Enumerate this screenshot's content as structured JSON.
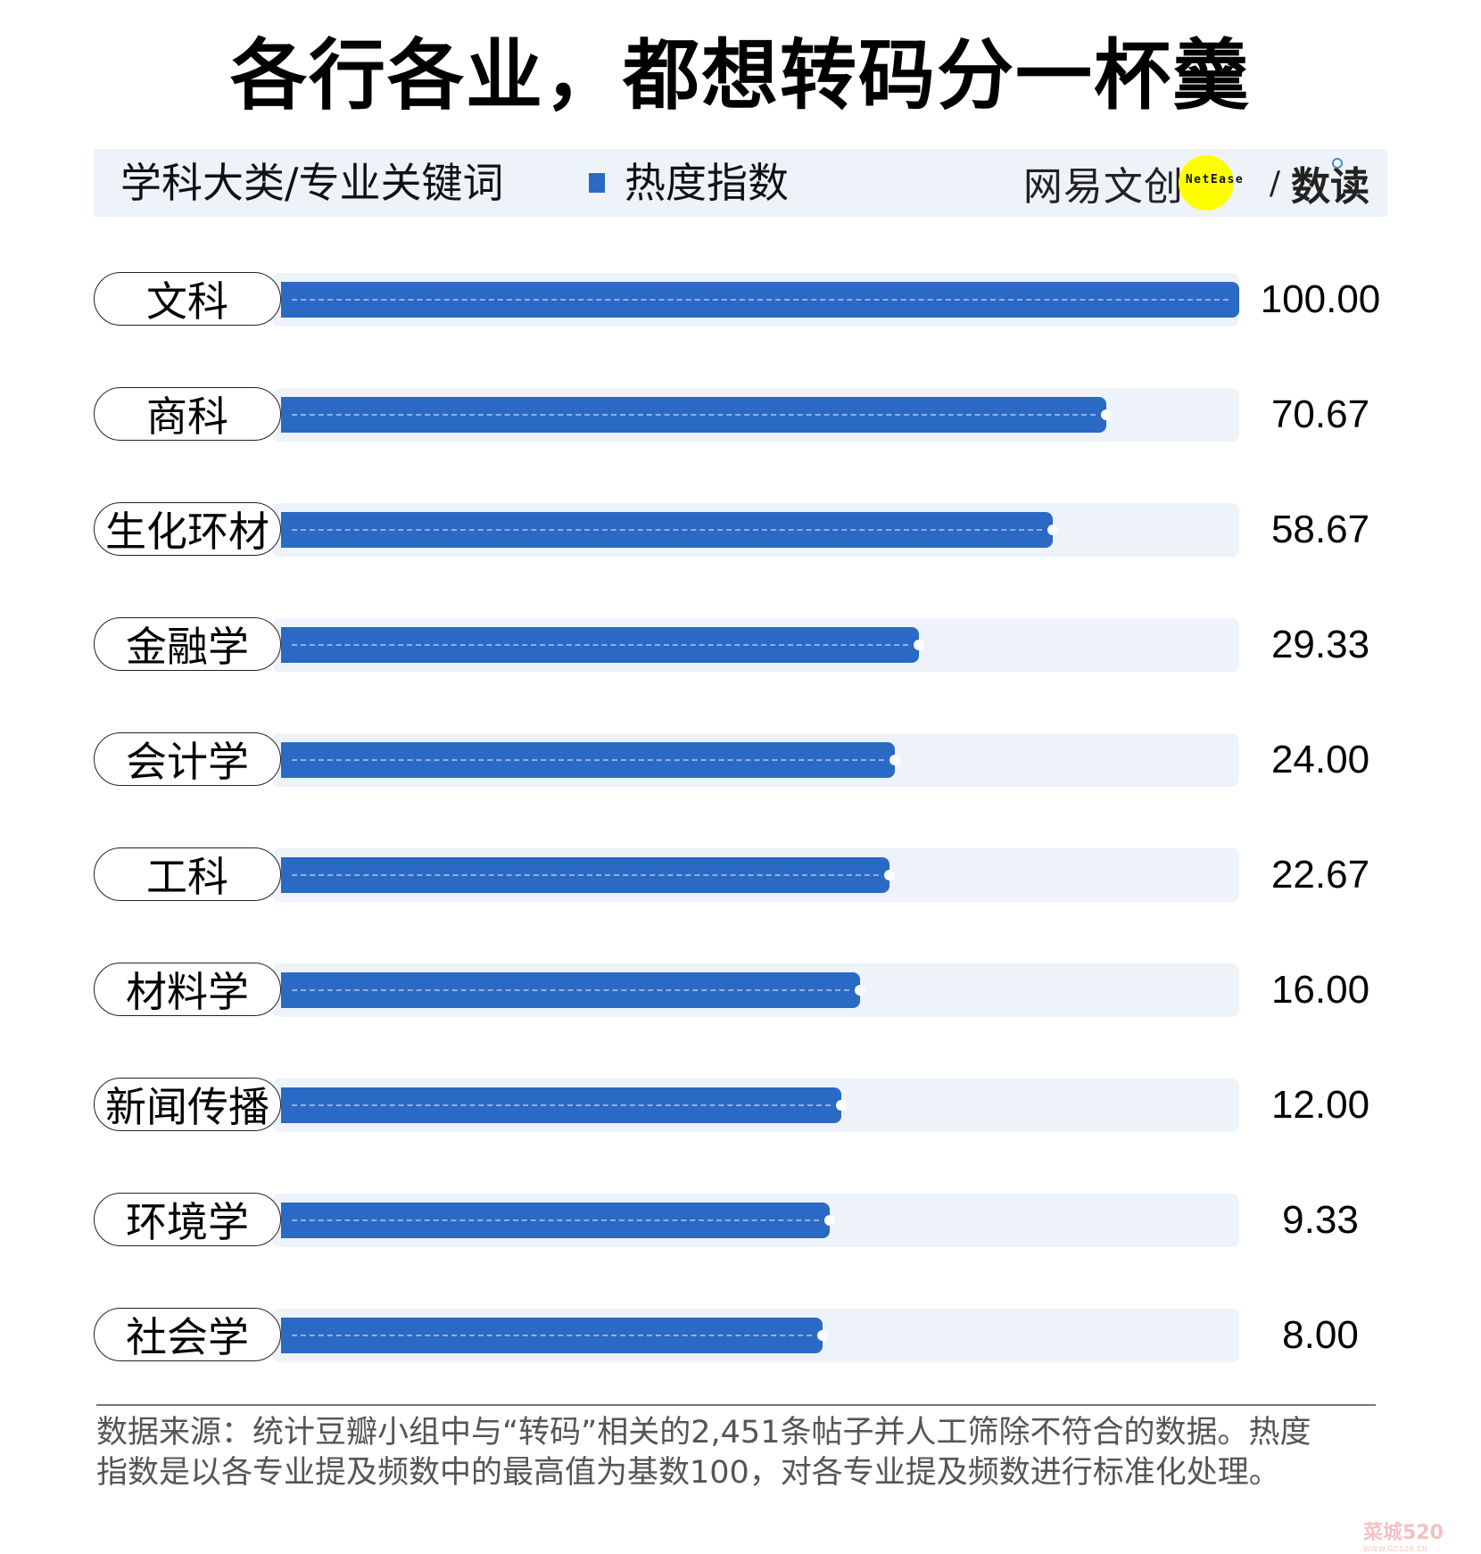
{
  "title": "各行各业，都想转码分一杯羹",
  "header": {
    "column_label": "学科大类/专业关键词",
    "legend_label": "热度指数",
    "legend_color": "#2a69c4",
    "brand_left": "网易文创",
    "brand_badge": "NetEase",
    "brand_sep": "/",
    "brand_right": "数读"
  },
  "chart_data": {
    "type": "bar",
    "orientation": "horizontal",
    "title": "各行各业，都想转码分一杯羹",
    "xlabel": "热度指数",
    "ylabel": "学科大类/专业关键词",
    "legend": [
      "热度指数"
    ],
    "grid": false,
    "categories": [
      "文科",
      "商科",
      "生化环材",
      "金融学",
      "会计学",
      "工科",
      "材料学",
      "新闻传播",
      "环境学",
      "社会学"
    ],
    "values": [
      100.0,
      70.67,
      58.67,
      29.33,
      24.0,
      22.67,
      16.0,
      12.0,
      9.33,
      8.0
    ],
    "labels": [
      "100.00",
      "70.67",
      "58.67",
      "29.33",
      "24.00",
      "22.67",
      "16.00",
      "12.00",
      "9.33",
      "8.00"
    ],
    "bar_widths_pct": [
      100,
      86.1,
      80.5,
      66.6,
      64.1,
      63.5,
      60.4,
      58.5,
      57.3,
      56.5
    ],
    "bar_color": "#2a69c4",
    "track_color": "#eef3fa"
  },
  "rows": [
    {
      "label": "文科",
      "value": "100.00"
    },
    {
      "label": "商科",
      "value": "70.67"
    },
    {
      "label": "生化环材",
      "value": "58.67"
    },
    {
      "label": "金融学",
      "value": "29.33"
    },
    {
      "label": "会计学",
      "value": "24.00"
    },
    {
      "label": "工科",
      "value": "22.67"
    },
    {
      "label": "材料学",
      "value": "16.00"
    },
    {
      "label": "新闻传播",
      "value": "12.00"
    },
    {
      "label": "环境学",
      "value": "9.33"
    },
    {
      "label": "社会学",
      "value": "8.00"
    }
  ],
  "footer": {
    "line1": "数据来源：统计豆瓣小组中与“转码”相关的2,451条帖子并人工筛除不符合的数据。热度",
    "line2": "指数是以各专业提及频数中的最高值为基数100，对各专业提及频数进行标准化处理。"
  },
  "watermark": {
    "text": "菜城520",
    "sub": "WWW.GC520.CN"
  }
}
